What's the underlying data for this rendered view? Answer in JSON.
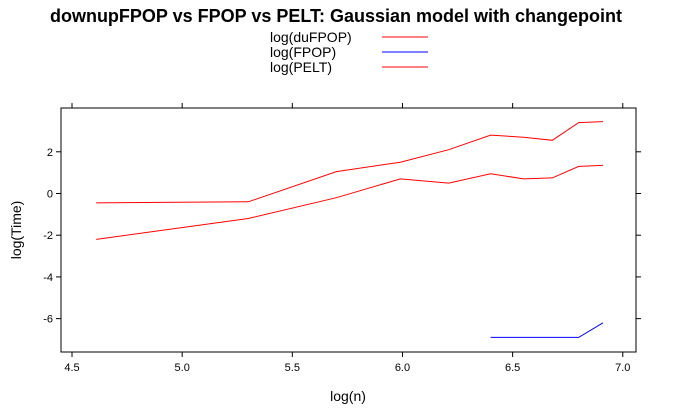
{
  "chart_data": {
    "type": "line",
    "title": "downupFPOP vs FPOP vs PELT: Gaussian model with changepoint",
    "xlabel": "log(n)",
    "ylabel": "log(Time)",
    "xlim": [
      4.45,
      7.06
    ],
    "ylim": [
      -7.6,
      4.1
    ],
    "xticks": [
      4.5,
      5.0,
      5.5,
      6.0,
      6.5,
      7.0
    ],
    "xtick_labels": [
      "4.5",
      "5.0",
      "5.5",
      "6.0",
      "6.5",
      "7.0"
    ],
    "yticks": [
      -6,
      -4,
      -2,
      0,
      2
    ],
    "ytick_labels": [
      "-6",
      "-4",
      "-2",
      "0",
      "2"
    ],
    "grid": false,
    "legend_position": "top-center",
    "series": [
      {
        "name": "log(duFPOP)",
        "color": "#ff0000",
        "x": [
          4.61,
          5.3,
          5.7,
          5.99,
          6.21,
          6.4,
          6.55,
          6.68,
          6.8,
          6.91
        ],
        "y": [
          -2.2,
          -1.2,
          -0.2,
          0.7,
          0.5,
          0.95,
          0.7,
          0.75,
          1.3,
          1.35
        ]
      },
      {
        "name": "log(FPOP)",
        "color": "#0000ff",
        "x": [
          6.4,
          6.55,
          6.68,
          6.8,
          6.91
        ],
        "y": [
          -6.9,
          -6.9,
          -6.9,
          -6.9,
          -6.2
        ]
      },
      {
        "name": "log(PELT)",
        "color": "#ff0000",
        "x": [
          4.61,
          5.3,
          5.7,
          5.99,
          6.21,
          6.4,
          6.55,
          6.68,
          6.8,
          6.91
        ],
        "y": [
          -0.45,
          -0.4,
          1.05,
          1.5,
          2.1,
          2.8,
          2.7,
          2.55,
          3.4,
          3.45
        ]
      }
    ]
  }
}
